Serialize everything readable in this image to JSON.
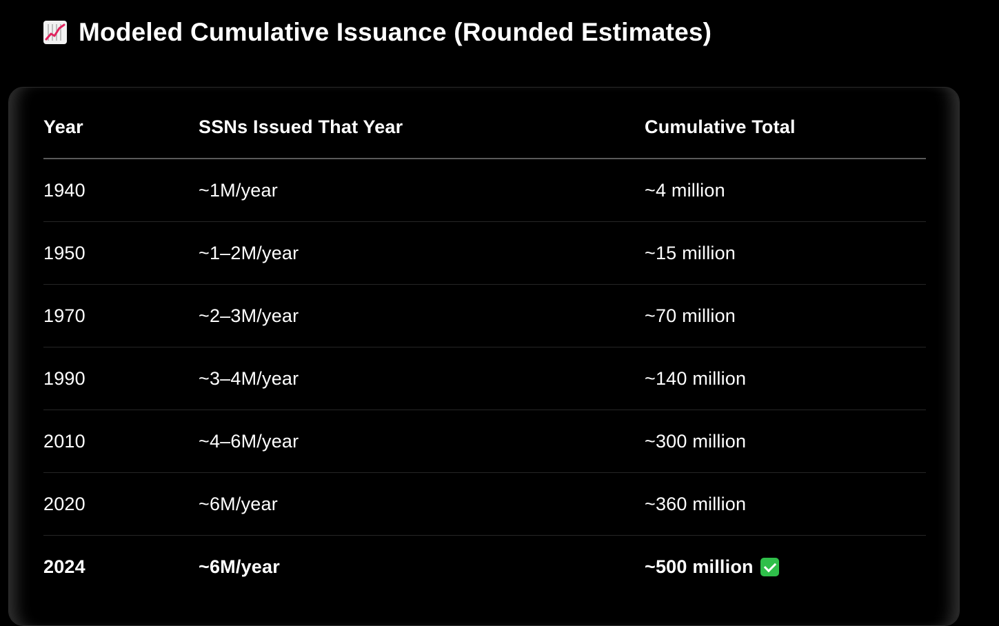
{
  "page": {
    "title": "Modeled Cumulative Issuance (Rounded Estimates)",
    "title_icon": "chart-increasing-icon"
  },
  "table": {
    "headers": [
      "Year",
      "SSNs Issued That Year",
      "Cumulative Total"
    ],
    "rows": [
      {
        "year": "1940",
        "issued": "~1M/year",
        "total": "~4 million"
      },
      {
        "year": "1950",
        "issued": "~1–2M/year",
        "total": "~15 million"
      },
      {
        "year": "1970",
        "issued": "~2–3M/year",
        "total": "~70 million"
      },
      {
        "year": "1990",
        "issued": "~3–4M/year",
        "total": "~140 million"
      },
      {
        "year": "2010",
        "issued": "~4–6M/year",
        "total": "~300 million"
      },
      {
        "year": "2020",
        "issued": "~6M/year",
        "total": "~360 million"
      },
      {
        "year": "2024",
        "issued": "~6M/year",
        "total": "~500 million",
        "badge_icon": "check-mark-button-icon",
        "emphasis": true
      }
    ]
  },
  "colors": {
    "background": "#000000",
    "text": "#ffffff",
    "check_badge": "#2fbf4a",
    "chart_icon_bg": "#f2f2f2",
    "chart_icon_line": "#e0245e"
  }
}
